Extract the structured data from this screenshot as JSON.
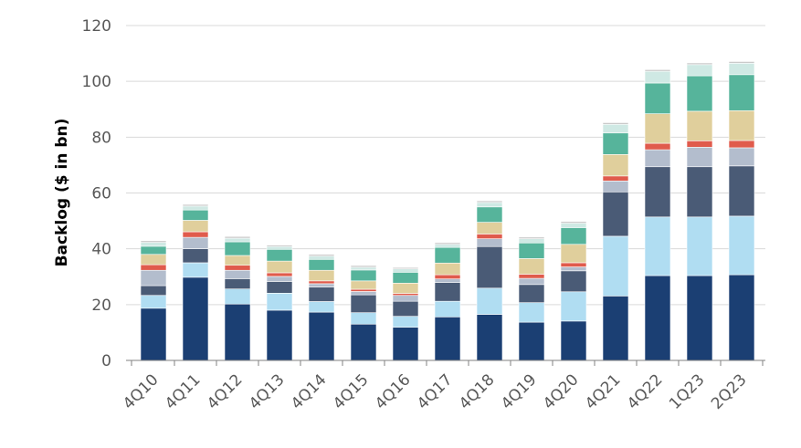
{
  "chart_data": {
    "type": "bar",
    "stacked": true,
    "title": "",
    "xlabel": "",
    "ylabel": "Backlog ($ in bn)",
    "ylim": [
      0,
      120
    ],
    "yticks": [
      0,
      20,
      40,
      60,
      80,
      100,
      120
    ],
    "grid": true,
    "legend": "none",
    "categories": [
      "4Q10",
      "4Q11",
      "4Q12",
      "4Q13",
      "4Q14",
      "4Q15",
      "4Q16",
      "4Q17",
      "4Q18",
      "4Q19",
      "4Q20",
      "4Q21",
      "4Q22",
      "1Q23",
      "2Q23"
    ],
    "series": [
      {
        "color": "#1b3f73",
        "values": [
          18.7,
          29.8,
          20.2,
          18.0,
          17.3,
          13.0,
          11.9,
          15.6,
          16.5,
          13.7,
          14.1,
          23.1,
          30.4,
          30.4,
          30.7
        ]
      },
      {
        "color": "#b0ddf2",
        "values": [
          4.6,
          5.2,
          5.4,
          6.1,
          3.8,
          4.1,
          3.9,
          5.6,
          9.4,
          7.0,
          10.5,
          21.4,
          21.0,
          21.0,
          21.0
        ]
      },
      {
        "color": "#4a5b76",
        "values": [
          3.5,
          5.0,
          3.7,
          4.2,
          5.2,
          6.4,
          5.4,
          6.7,
          14.9,
          6.5,
          7.5,
          15.9,
          18.0,
          18.0,
          18.0
        ]
      },
      {
        "color": "#b3bdcd",
        "values": [
          5.5,
          4.1,
          3.0,
          1.8,
          1.2,
          1.2,
          2.1,
          1.3,
          2.8,
          2.2,
          1.4,
          3.9,
          6.1,
          7.0,
          6.5
        ]
      },
      {
        "color": "#e05b4c",
        "values": [
          2.0,
          2.0,
          1.8,
          1.3,
          1.0,
          0.8,
          0.7,
          1.5,
          1.7,
          1.5,
          1.5,
          1.8,
          2.3,
          2.3,
          2.6
        ]
      },
      {
        "color": "#e0cf9c",
        "values": [
          3.7,
          4.1,
          3.5,
          4.2,
          3.8,
          3.0,
          3.7,
          4.2,
          4.2,
          5.6,
          6.6,
          7.7,
          10.6,
          10.6,
          10.7
        ]
      },
      {
        "color": "#56b49b",
        "values": [
          2.9,
          3.7,
          4.9,
          4.2,
          3.9,
          3.9,
          3.9,
          5.6,
          5.5,
          5.6,
          6.0,
          7.7,
          11.0,
          12.7,
          12.9
        ]
      },
      {
        "color": "#cfe9e4",
        "values": [
          1.4,
          1.4,
          1.3,
          1.0,
          1.2,
          1.0,
          1.2,
          1.1,
          1.6,
          1.5,
          1.6,
          3.1,
          4.2,
          4.0,
          4.1
        ]
      },
      {
        "color": "#c9c9c9",
        "values": [
          0.6,
          0.6,
          0.6,
          0.5,
          0.6,
          0.6,
          0.5,
          0.6,
          0.6,
          0.6,
          0.6,
          0.6,
          0.6,
          0.6,
          0.6
        ]
      }
    ]
  }
}
